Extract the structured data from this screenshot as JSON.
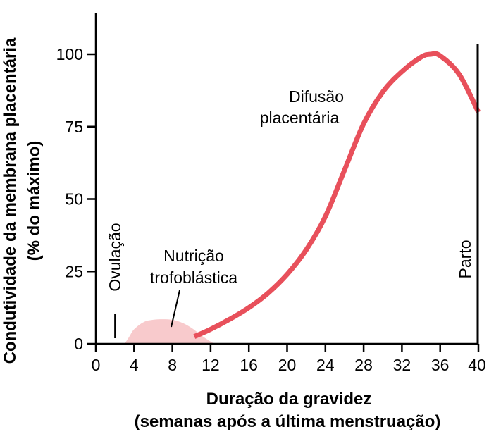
{
  "chart_data": {
    "type": "line",
    "title": "",
    "xlabel_line1": "Duração da gravidez",
    "xlabel_line2": "(semanas após a última menstruação)",
    "ylabel_line1": "Condutividade da membrana placentária",
    "ylabel_line2": "(% do máximo)",
    "xlim": [
      0,
      40
    ],
    "ylim": [
      0,
      110
    ],
    "x_ticks": [
      0,
      4,
      8,
      12,
      16,
      20,
      24,
      28,
      32,
      36,
      40
    ],
    "y_ticks": [
      0,
      25,
      50,
      75,
      100
    ],
    "grid": false,
    "series": [
      {
        "name": "Difusão placentária",
        "color": "#e8505b",
        "x": [
          10.3,
          12,
          14,
          16,
          18,
          20,
          22,
          24,
          26,
          28,
          30,
          32,
          34,
          35,
          36,
          38,
          40
        ],
        "y": [
          2.5,
          5,
          8.5,
          12.5,
          17.5,
          24,
          32.5,
          44,
          60,
          76,
          87,
          94,
          99,
          100,
          99.5,
          93,
          80
        ]
      },
      {
        "name": "Nutrição trofoblástica",
        "color": "#f6b8bb",
        "x": [
          3,
          3.5,
          4,
          5,
          6,
          7,
          8,
          9,
          10,
          11,
          12,
          12.5
        ],
        "y": [
          0,
          2.5,
          5,
          7.5,
          8.3,
          8.5,
          8.3,
          7.3,
          5.5,
          3,
          0.8,
          0
        ]
      }
    ],
    "annotations": {
      "ovulacao": {
        "label": "Ovulação",
        "x": 2
      },
      "parto": {
        "label": "Parto",
        "x": 40
      },
      "difusao_line1": "Difusão",
      "difusao_line2": "placentária",
      "nutricao_line1": "Nutrição",
      "nutricao_line2": "trofoblástica"
    }
  }
}
